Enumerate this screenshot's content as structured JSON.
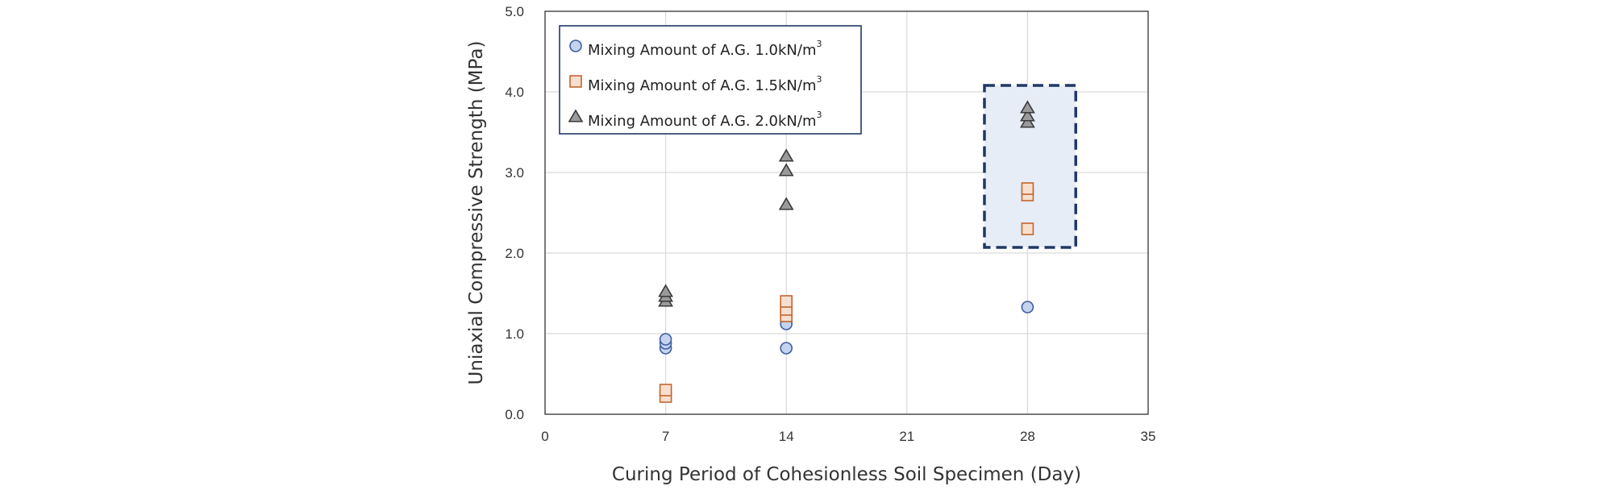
{
  "chart_data": {
    "type": "scatter",
    "title": "",
    "xlabel": "Curing Period of Cohesionless Soil Specimen (Day)",
    "ylabel": "Uniaxial Compressive Strength (MPa)",
    "xlim": [
      0,
      35
    ],
    "ylim": [
      0,
      5
    ],
    "xticks": [
      0,
      7,
      14,
      21,
      28,
      35
    ],
    "xtick_labels": [
      "0",
      "7",
      "14",
      "21",
      "28",
      "35"
    ],
    "yticks": [
      0,
      1,
      2,
      3,
      4,
      5
    ],
    "ytick_labels": [
      "0.0",
      "1.0",
      "2.0",
      "3.0",
      "4.0",
      "5.0"
    ],
    "grid": true,
    "legend_position": "top-left",
    "series": [
      {
        "name": "Mixing Amount of A.G. 1.0kN/m³",
        "legend_main": "Mixing Amount of A.G. 1.0kN/m",
        "legend_sup": "3",
        "marker": "circle",
        "fill": "#c5d3ee",
        "stroke": "#3d5fa3",
        "x": [
          7,
          7,
          7,
          14,
          14,
          28
        ],
        "y": [
          0.82,
          0.88,
          0.93,
          0.82,
          1.12,
          1.33
        ]
      },
      {
        "name": "Mixing Amount of A.G. 1.5kN/m³",
        "legend_main": "Mixing Amount of A.G. 1.5kN/m",
        "legend_sup": "3",
        "marker": "square",
        "fill": "#f7dfcf",
        "stroke": "#c1662e",
        "x": [
          7,
          7,
          14,
          14,
          14,
          28,
          28,
          28
        ],
        "y": [
          0.22,
          0.3,
          1.22,
          1.3,
          1.4,
          2.3,
          2.72,
          2.8
        ]
      },
      {
        "name": "Mixing Amount of A.G. 2.0kN/m³",
        "legend_main": "Mixing Amount of A.G. 2.0kN/m",
        "legend_sup": "3",
        "marker": "triangle",
        "fill": "#9a9a9a",
        "stroke": "#3a3a3a",
        "x": [
          7,
          7,
          7,
          14,
          14,
          14,
          28,
          28,
          28
        ],
        "y": [
          1.4,
          1.46,
          1.52,
          2.6,
          3.02,
          3.2,
          3.62,
          3.7,
          3.8
        ]
      }
    ],
    "annotations": [
      {
        "type": "highlight-box",
        "x_range": [
          25.5,
          30.8
        ],
        "y_range": [
          2.07,
          4.08
        ],
        "fill": "#e6edf7",
        "stroke": "#1f3864",
        "style": "dashed"
      }
    ]
  }
}
